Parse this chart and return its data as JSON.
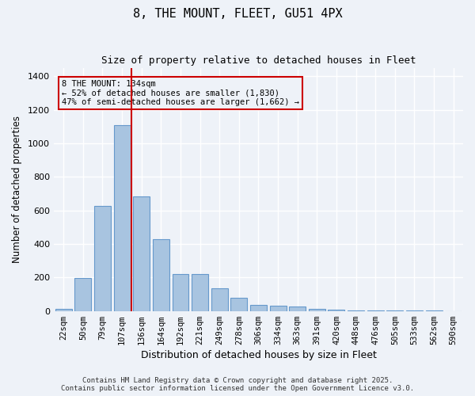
{
  "title_line1": "8, THE MOUNT, FLEET, GU51 4PX",
  "title_line2": "Size of property relative to detached houses in Fleet",
  "xlabel": "Distribution of detached houses by size in Fleet",
  "ylabel": "Number of detached properties",
  "categories": [
    "22sqm",
    "50sqm",
    "79sqm",
    "107sqm",
    "136sqm",
    "164sqm",
    "192sqm",
    "221sqm",
    "249sqm",
    "278sqm",
    "306sqm",
    "334sqm",
    "363sqm",
    "391sqm",
    "420sqm",
    "448sqm",
    "476sqm",
    "505sqm",
    "533sqm",
    "562sqm",
    "590sqm"
  ],
  "values": [
    15,
    195,
    625,
    1110,
    685,
    430,
    220,
    220,
    135,
    80,
    35,
    30,
    25,
    15,
    10,
    5,
    5,
    2,
    1,
    1,
    0
  ],
  "bar_color": "#a8c4e0",
  "bar_edge_color": "#6699cc",
  "bg_color": "#eef2f8",
  "grid_color": "#ffffff",
  "vline_x": 4,
  "vline_color": "#cc0000",
  "annotation_title": "8 THE MOUNT: 134sqm",
  "annotation_line2": "← 52% of detached houses are smaller (1,830)",
  "annotation_line3": "47% of semi-detached houses are larger (1,662) →",
  "annotation_box_color": "#cc0000",
  "footer_line1": "Contains HM Land Registry data © Crown copyright and database right 2025.",
  "footer_line2": "Contains public sector information licensed under the Open Government Licence v3.0.",
  "ylim": [
    0,
    1450
  ],
  "yticks": [
    0,
    200,
    400,
    600,
    800,
    1000,
    1200,
    1400
  ]
}
